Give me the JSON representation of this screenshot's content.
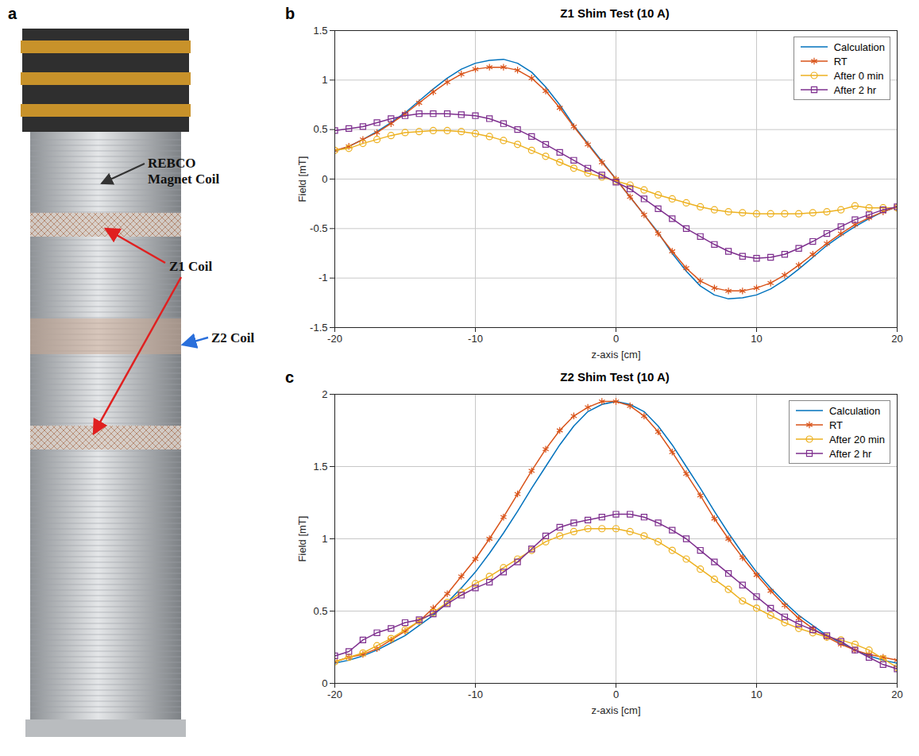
{
  "photo": {
    "letter": "a",
    "labels": [
      "REBCO Magnet Coil",
      "Z1 Coil",
      "Z2 Coil"
    ]
  },
  "chart_data": [
    {
      "type": "line",
      "letter": "b",
      "title": "Z1 Shim Test (10 A)",
      "x_label": "z-axis [cm]",
      "y_label": "Field [mT]",
      "xlim": [
        -20,
        20
      ],
      "xticks": [
        -20,
        -10,
        0,
        10,
        20
      ],
      "ylim": [
        -1.5,
        1.5
      ],
      "yticks": [
        -1.5,
        -1,
        -0.5,
        0,
        0.5,
        1,
        1.5
      ],
      "grid": true,
      "legend": "top-right",
      "x": [
        -20,
        -19,
        -18,
        -17,
        -16,
        -15,
        -14,
        -13,
        -12,
        -11,
        -10,
        -9,
        -8,
        -7,
        -6,
        -5,
        -4,
        -3,
        -2,
        -1,
        0,
        1,
        2,
        3,
        4,
        5,
        6,
        7,
        8,
        9,
        10,
        11,
        12,
        13,
        14,
        15,
        16,
        17,
        18,
        19,
        20
      ],
      "series": [
        {
          "name": "Calculation",
          "color": "#0072bd",
          "marker": "none",
          "line_style": "solid",
          "values": [
            0.28,
            0.33,
            0.4,
            0.48,
            0.57,
            0.67,
            0.79,
            0.91,
            1.02,
            1.11,
            1.17,
            1.2,
            1.21,
            1.17,
            1.08,
            0.93,
            0.75,
            0.54,
            0.36,
            0.18,
            0,
            -0.18,
            -0.36,
            -0.54,
            -0.75,
            -0.93,
            -1.08,
            -1.17,
            -1.21,
            -1.2,
            -1.17,
            -1.11,
            -1.02,
            -0.91,
            -0.79,
            -0.67,
            -0.57,
            -0.48,
            -0.4,
            -0.33,
            -0.28
          ]
        },
        {
          "name": "RT",
          "color": "#d95319",
          "marker": "asterisk",
          "line_style": "solid",
          "values": [
            0.29,
            0.33,
            0.4,
            0.47,
            0.56,
            0.66,
            0.77,
            0.88,
            0.98,
            1.06,
            1.11,
            1.13,
            1.13,
            1.1,
            1.02,
            0.89,
            0.72,
            0.53,
            0.35,
            0.17,
            0,
            -0.18,
            -0.36,
            -0.55,
            -0.73,
            -0.9,
            -1.03,
            -1.1,
            -1.13,
            -1.13,
            -1.1,
            -1.05,
            -0.97,
            -0.87,
            -0.76,
            -0.65,
            -0.55,
            -0.46,
            -0.39,
            -0.33,
            -0.28
          ]
        },
        {
          "name": "After 0 min",
          "color": "#edb120",
          "marker": "circle",
          "line_style": "solid",
          "values": [
            0.29,
            0.31,
            0.36,
            0.4,
            0.44,
            0.47,
            0.48,
            0.49,
            0.49,
            0.48,
            0.46,
            0.43,
            0.39,
            0.35,
            0.29,
            0.23,
            0.17,
            0.11,
            0.06,
            0.02,
            -0.02,
            -0.06,
            -0.11,
            -0.16,
            -0.2,
            -0.24,
            -0.28,
            -0.31,
            -0.33,
            -0.34,
            -0.35,
            -0.35,
            -0.35,
            -0.35,
            -0.34,
            -0.33,
            -0.31,
            -0.27,
            -0.29,
            -0.29,
            -0.29
          ]
        },
        {
          "name": "After 2 hr",
          "color": "#7e2f8e",
          "marker": "square",
          "line_style": "solid",
          "values": [
            0.49,
            0.51,
            0.53,
            0.57,
            0.61,
            0.64,
            0.66,
            0.66,
            0.66,
            0.65,
            0.64,
            0.61,
            0.56,
            0.5,
            0.43,
            0.35,
            0.27,
            0.19,
            0.11,
            0.04,
            -0.03,
            -0.1,
            -0.2,
            -0.3,
            -0.4,
            -0.5,
            -0.58,
            -0.66,
            -0.73,
            -0.78,
            -0.8,
            -0.79,
            -0.76,
            -0.7,
            -0.63,
            -0.55,
            -0.48,
            -0.41,
            -0.36,
            -0.31,
            -0.28
          ]
        }
      ]
    },
    {
      "type": "line",
      "letter": "c",
      "title": "Z2 Shim Test (10 A)",
      "x_label": "z-axis [cm]",
      "y_label": "Field [mT]",
      "xlim": [
        -20,
        20
      ],
      "xticks": [
        -20,
        -10,
        0,
        10,
        20
      ],
      "ylim": [
        0,
        2
      ],
      "yticks": [
        0,
        0.5,
        1,
        1.5,
        2
      ],
      "grid": true,
      "legend": "top-right",
      "x": [
        -20,
        -19,
        -18,
        -17,
        -16,
        -15,
        -14,
        -13,
        -12,
        -11,
        -10,
        -9,
        -8,
        -7,
        -6,
        -5,
        -4,
        -3,
        -2,
        -1,
        0,
        1,
        2,
        3,
        4,
        5,
        6,
        7,
        8,
        9,
        10,
        11,
        12,
        13,
        14,
        15,
        16,
        17,
        18,
        19,
        20
      ],
      "series": [
        {
          "name": "Calculation",
          "color": "#0072bd",
          "marker": "none",
          "line_style": "solid",
          "values": [
            0.14,
            0.16,
            0.19,
            0.23,
            0.28,
            0.33,
            0.4,
            0.47,
            0.56,
            0.66,
            0.77,
            0.9,
            1.04,
            1.19,
            1.35,
            1.5,
            1.65,
            1.78,
            1.88,
            1.93,
            1.95,
            1.93,
            1.88,
            1.78,
            1.65,
            1.5,
            1.35,
            1.19,
            1.04,
            0.9,
            0.77,
            0.66,
            0.56,
            0.47,
            0.4,
            0.33,
            0.28,
            0.23,
            0.19,
            0.16,
            0.14
          ]
        },
        {
          "name": "RT",
          "color": "#d95319",
          "marker": "asterisk",
          "line_style": "solid",
          "values": [
            0.15,
            0.18,
            0.2,
            0.24,
            0.3,
            0.36,
            0.43,
            0.52,
            0.62,
            0.74,
            0.86,
            1.0,
            1.15,
            1.31,
            1.47,
            1.62,
            1.75,
            1.85,
            1.91,
            1.95,
            1.95,
            1.92,
            1.85,
            1.74,
            1.6,
            1.45,
            1.3,
            1.14,
            1.0,
            0.87,
            0.75,
            0.64,
            0.54,
            0.45,
            0.38,
            0.32,
            0.27,
            0.23,
            0.2,
            0.18,
            0.16
          ]
        },
        {
          "name": "After 20 min",
          "color": "#edb120",
          "marker": "circle",
          "line_style": "solid",
          "values": [
            0.15,
            0.18,
            0.21,
            0.26,
            0.31,
            0.37,
            0.43,
            0.49,
            0.56,
            0.63,
            0.69,
            0.74,
            0.8,
            0.86,
            0.92,
            0.98,
            1.02,
            1.05,
            1.07,
            1.07,
            1.07,
            1.05,
            1.02,
            0.98,
            0.92,
            0.86,
            0.79,
            0.72,
            0.65,
            0.57,
            0.52,
            0.47,
            0.42,
            0.38,
            0.35,
            0.32,
            0.3,
            0.27,
            0.23,
            0.17,
            0.11
          ]
        },
        {
          "name": "After 2 hr",
          "color": "#7e2f8e",
          "marker": "square",
          "line_style": "solid",
          "values": [
            0.19,
            0.22,
            0.3,
            0.35,
            0.38,
            0.42,
            0.44,
            0.48,
            0.55,
            0.61,
            0.66,
            0.7,
            0.77,
            0.84,
            0.93,
            1.02,
            1.08,
            1.11,
            1.13,
            1.15,
            1.17,
            1.17,
            1.15,
            1.11,
            1.06,
            1.0,
            0.92,
            0.84,
            0.76,
            0.68,
            0.6,
            0.52,
            0.46,
            0.41,
            0.37,
            0.33,
            0.29,
            0.23,
            0.18,
            0.13,
            0.1
          ]
        }
      ]
    }
  ]
}
